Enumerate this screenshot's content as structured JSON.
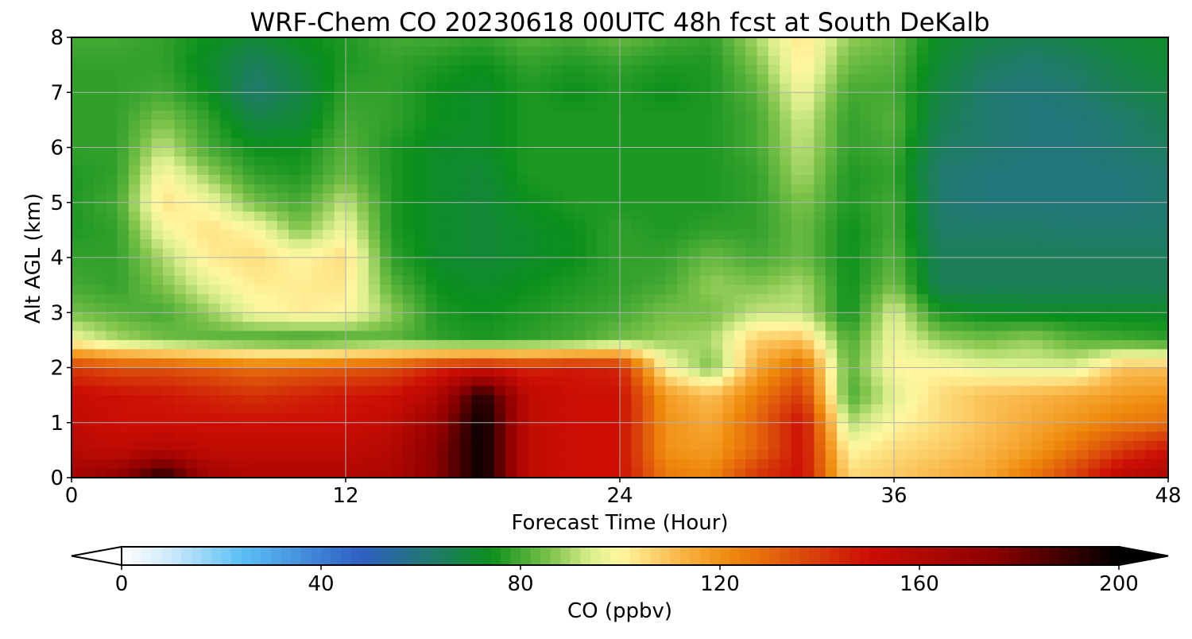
{
  "chart_data": {
    "type": "heatmap",
    "title": "WRF-Chem CO  20230618 00UTC 48h fcst at South DeKalb",
    "xlabel": "Forecast Time (Hour)",
    "ylabel": "Alt AGL (km)",
    "xlim": [
      0,
      48
    ],
    "ylim": [
      0,
      8
    ],
    "x_ticks": [
      0,
      12,
      24,
      36,
      48
    ],
    "y_ticks": [
      0,
      1,
      2,
      3,
      4,
      5,
      6,
      7,
      8
    ],
    "grid": true,
    "x_hours": [
      0,
      2,
      4,
      6,
      8,
      10,
      12,
      14,
      16,
      18,
      20,
      22,
      24,
      26,
      28,
      30,
      32,
      34,
      36,
      38,
      40,
      42,
      44,
      46,
      48
    ],
    "y_km": [
      0.1,
      0.5,
      1.0,
      1.5,
      2.0,
      2.5,
      3.0,
      3.5,
      4.0,
      4.5,
      5.0,
      5.5,
      6.0,
      6.5,
      7.0,
      7.5,
      8.0
    ],
    "values": [
      [
        165,
        170,
        190,
        165,
        160,
        160,
        160,
        162,
        175,
        200,
        155,
        150,
        150,
        125,
        122,
        140,
        150,
        105,
        108,
        112,
        115,
        125,
        138,
        155,
        160
      ],
      [
        158,
        155,
        160,
        155,
        155,
        155,
        155,
        160,
        175,
        200,
        155,
        150,
        150,
        120,
        118,
        130,
        150,
        100,
        105,
        108,
        112,
        118,
        128,
        140,
        150
      ],
      [
        155,
        150,
        150,
        150,
        150,
        150,
        150,
        155,
        170,
        200,
        155,
        150,
        150,
        120,
        115,
        130,
        150,
        90,
        100,
        105,
        110,
        115,
        120,
        125,
        128
      ],
      [
        152,
        150,
        148,
        145,
        142,
        145,
        148,
        150,
        160,
        195,
        155,
        150,
        150,
        118,
        110,
        125,
        140,
        80,
        95,
        105,
        110,
        112,
        115,
        118,
        120
      ],
      [
        140,
        135,
        135,
        132,
        128,
        130,
        132,
        135,
        145,
        150,
        145,
        148,
        145,
        100,
        85,
        115,
        130,
        82,
        100,
        100,
        96,
        95,
        95,
        110,
        110
      ],
      [
        98,
        90,
        85,
        82,
        80,
        78,
        80,
        82,
        78,
        76,
        78,
        80,
        85,
        88,
        90,
        108,
        110,
        80,
        98,
        88,
        85,
        88,
        82,
        80,
        78
      ],
      [
        85,
        82,
        80,
        88,
        98,
        102,
        100,
        88,
        76,
        74,
        76,
        78,
        80,
        85,
        85,
        92,
        92,
        74,
        95,
        75,
        73,
        72,
        72,
        72,
        72
      ],
      [
        80,
        78,
        86,
        96,
        102,
        102,
        103,
        82,
        74,
        72,
        74,
        76,
        78,
        80,
        88,
        86,
        90,
        74,
        85,
        65,
        65,
        65,
        65,
        65,
        65
      ],
      [
        78,
        78,
        90,
        102,
        105,
        100,
        105,
        78,
        72,
        70,
        72,
        74,
        78,
        78,
        84,
        80,
        84,
        74,
        82,
        65,
        65,
        65,
        65,
        65,
        65
      ],
      [
        76,
        78,
        98,
        104,
        100,
        86,
        98,
        76,
        72,
        70,
        72,
        74,
        78,
        76,
        78,
        78,
        84,
        74,
        80,
        63,
        63,
        63,
        62,
        62,
        62
      ],
      [
        76,
        80,
        104,
        98,
        85,
        80,
        92,
        76,
        72,
        70,
        74,
        76,
        76,
        76,
        76,
        78,
        86,
        76,
        80,
        62,
        60,
        60,
        60,
        60,
        62
      ],
      [
        76,
        78,
        100,
        88,
        78,
        76,
        84,
        76,
        72,
        70,
        76,
        76,
        76,
        76,
        76,
        78,
        90,
        76,
        78,
        62,
        60,
        60,
        60,
        60,
        62
      ],
      [
        78,
        78,
        92,
        80,
        74,
        74,
        82,
        76,
        72,
        72,
        76,
        76,
        76,
        76,
        76,
        80,
        92,
        78,
        80,
        64,
        62,
        60,
        60,
        62,
        64
      ],
      [
        78,
        78,
        86,
        78,
        68,
        70,
        80,
        78,
        74,
        72,
        76,
        76,
        76,
        76,
        76,
        80,
        94,
        78,
        82,
        66,
        62,
        60,
        60,
        62,
        66
      ],
      [
        78,
        78,
        80,
        74,
        62,
        68,
        78,
        78,
        74,
        72,
        76,
        74,
        76,
        74,
        76,
        82,
        98,
        80,
        80,
        68,
        62,
        60,
        62,
        66,
        68
      ],
      [
        78,
        78,
        78,
        72,
        64,
        70,
        76,
        78,
        76,
        74,
        78,
        76,
        78,
        76,
        76,
        86,
        102,
        84,
        82,
        70,
        64,
        62,
        64,
        68,
        70
      ],
      [
        80,
        80,
        78,
        74,
        70,
        74,
        76,
        80,
        80,
        78,
        82,
        80,
        84,
        80,
        78,
        90,
        104,
        88,
        84,
        72,
        68,
        66,
        68,
        70,
        72
      ]
    ],
    "colorbar": {
      "label": "CO  (ppbv)",
      "ticks": [
        0,
        40,
        80,
        120,
        160,
        200
      ],
      "range": [
        0,
        200
      ],
      "extend": "both"
    }
  },
  "colors": {
    "colormap_stops": [
      [
        0,
        "#ffffff"
      ],
      [
        10,
        "#cde9fb"
      ],
      [
        24,
        "#5cc0f5"
      ],
      [
        48,
        "#2f5fc4"
      ],
      [
        62,
        "#217a6e"
      ],
      [
        74,
        "#0b8f1c"
      ],
      [
        86,
        "#7ec34a"
      ],
      [
        94,
        "#d9ee8c"
      ],
      [
        100,
        "#fff7a0"
      ],
      [
        112,
        "#f9b648"
      ],
      [
        122,
        "#ef8a0c"
      ],
      [
        138,
        "#d9430a"
      ],
      [
        150,
        "#cc0e05"
      ],
      [
        175,
        "#8c0000"
      ],
      [
        200,
        "#000000"
      ]
    ],
    "grid": "#b0b0b0",
    "frame": "#000000"
  }
}
